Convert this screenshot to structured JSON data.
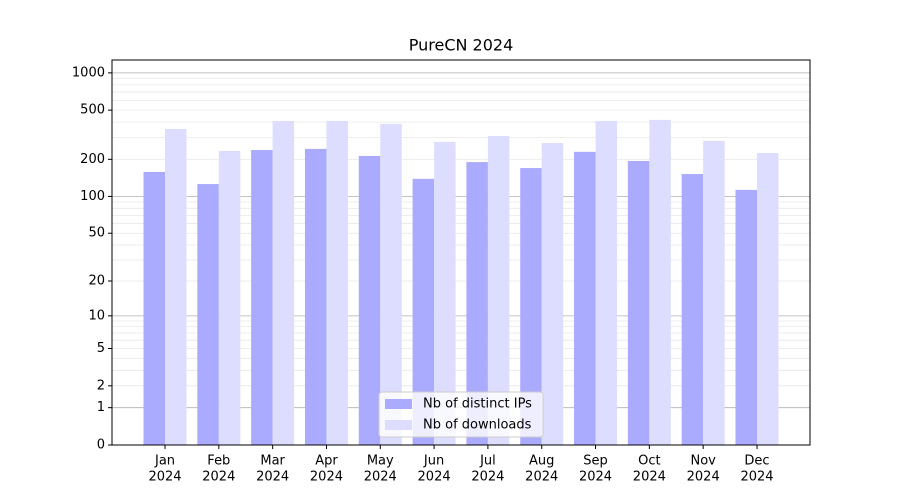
{
  "chart_data": {
    "type": "bar",
    "title": "PureCN 2024",
    "scale": "log1p",
    "categories": [
      [
        "Jan",
        "2024"
      ],
      [
        "Feb",
        "2024"
      ],
      [
        "Mar",
        "2024"
      ],
      [
        "Apr",
        "2024"
      ],
      [
        "May",
        "2024"
      ],
      [
        "Jun",
        "2024"
      ],
      [
        "Jul",
        "2024"
      ],
      [
        "Aug",
        "2024"
      ],
      [
        "Sep",
        "2024"
      ],
      [
        "Oct",
        "2024"
      ],
      [
        "Nov",
        "2024"
      ],
      [
        "Dec",
        "2024"
      ]
    ],
    "series": [
      {
        "name": "Nb of distinct IPs",
        "color": "#aaaaff",
        "values": [
          158,
          126,
          238,
          243,
          213,
          139,
          190,
          170,
          230,
          194,
          152,
          113
        ]
      },
      {
        "name": "Nb of downloads",
        "color": "#ddddff",
        "values": [
          352,
          234,
          409,
          409,
          387,
          277,
          309,
          271,
          409,
          417,
          282,
          225
        ]
      }
    ],
    "ylim": [
      0,
      1270
    ],
    "yticks": [
      0,
      1,
      2,
      5,
      10,
      20,
      50,
      100,
      200,
      500,
      1000
    ],
    "grid": true,
    "major_grid": [
      1,
      10,
      100,
      1000
    ],
    "minor_grid": [
      2,
      3,
      4,
      5,
      6,
      7,
      8,
      9,
      20,
      30,
      40,
      50,
      60,
      70,
      80,
      90,
      200,
      300,
      400,
      500,
      600,
      700,
      800,
      900
    ],
    "legend": "lower center"
  }
}
